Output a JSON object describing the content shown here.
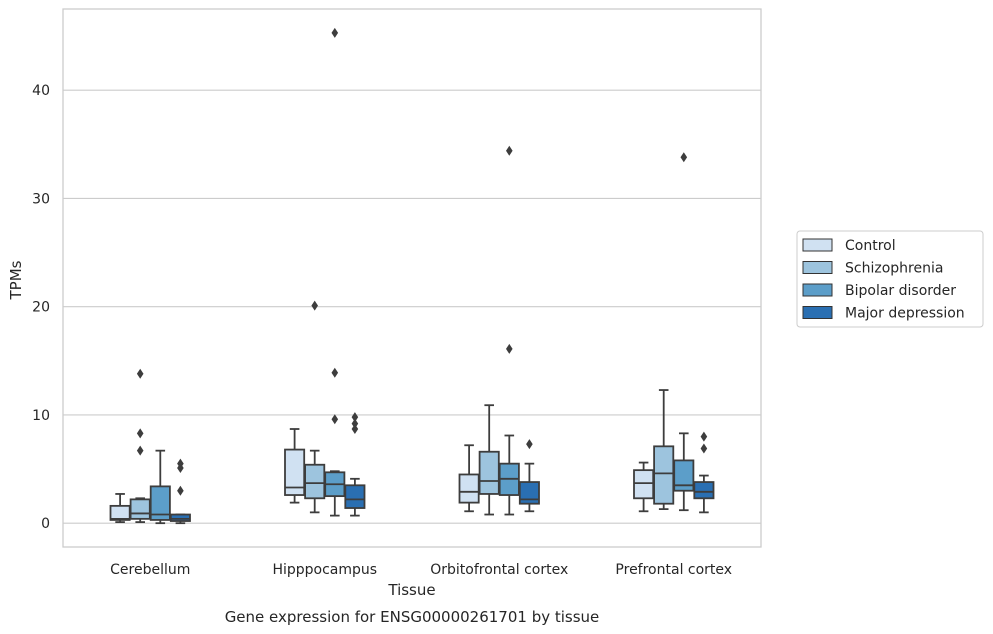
{
  "chart_data": {
    "type": "box",
    "caption": "Gene expression for ENSG00000261701 by tissue",
    "xlabel": "Tissue",
    "ylabel": "TPMs",
    "ylim": [
      -2.2,
      47.5
    ],
    "yticks": [
      0,
      10,
      20,
      30,
      40
    ],
    "grid": "y",
    "legend_position": "right",
    "categories": [
      "Cerebellum",
      "Hipppocampus",
      "Orbitofrontal cortex",
      "Prefrontal cortex"
    ],
    "series": [
      {
        "name": "Control",
        "color": "#d0e1f2",
        "boxes": [
          {
            "whislo": 0.1,
            "q1": 0.3,
            "med": 0.4,
            "q3": 1.6,
            "whishi": 2.7,
            "fliers": []
          },
          {
            "whislo": 1.9,
            "q1": 2.6,
            "med": 3.3,
            "q3": 6.8,
            "whishi": 8.7,
            "fliers": []
          },
          {
            "whislo": 1.1,
            "q1": 1.9,
            "med": 2.9,
            "q3": 4.5,
            "whishi": 7.2,
            "fliers": []
          },
          {
            "whislo": 1.1,
            "q1": 2.3,
            "med": 3.7,
            "q3": 4.9,
            "whishi": 5.6,
            "fliers": []
          }
        ]
      },
      {
        "name": "Schizophrenia",
        "color": "#9dc4de",
        "boxes": [
          {
            "whislo": 0.1,
            "q1": 0.4,
            "med": 0.9,
            "q3": 2.2,
            "whishi": 2.3,
            "fliers": [
              6.7,
              8.3,
              13.8
            ]
          },
          {
            "whislo": 1.0,
            "q1": 2.3,
            "med": 3.7,
            "q3": 5.4,
            "whishi": 6.7,
            "fliers": [
              20.1
            ]
          },
          {
            "whislo": 0.8,
            "q1": 2.7,
            "med": 3.9,
            "q3": 6.6,
            "whishi": 10.9,
            "fliers": []
          },
          {
            "whislo": 1.3,
            "q1": 1.8,
            "med": 4.6,
            "q3": 7.1,
            "whishi": 12.3,
            "fliers": []
          }
        ]
      },
      {
        "name": "Bipolar disorder",
        "color": "#5c9ec9",
        "boxes": [
          {
            "whislo": 0.0,
            "q1": 0.3,
            "med": 0.8,
            "q3": 3.4,
            "whishi": 6.7,
            "fliers": []
          },
          {
            "whislo": 0.7,
            "q1": 2.5,
            "med": 3.6,
            "q3": 4.7,
            "whishi": 4.8,
            "fliers": [
              9.6,
              13.9,
              45.3
            ]
          },
          {
            "whislo": 0.8,
            "q1": 2.6,
            "med": 4.1,
            "q3": 5.5,
            "whishi": 8.1,
            "fliers": [
              16.1,
              34.4
            ]
          },
          {
            "whislo": 1.2,
            "q1": 3.0,
            "med": 3.5,
            "q3": 5.8,
            "whishi": 8.3,
            "fliers": [
              33.8
            ]
          }
        ]
      },
      {
        "name": "Major depression",
        "color": "#2a6fb2",
        "boxes": [
          {
            "whislo": 0.0,
            "q1": 0.2,
            "med": 0.4,
            "q3": 0.8,
            "whishi": 0.8,
            "fliers": [
              3.0,
              5.1,
              5.5
            ]
          },
          {
            "whislo": 0.7,
            "q1": 1.4,
            "med": 2.2,
            "q3": 3.5,
            "whishi": 4.1,
            "fliers": [
              8.7,
              9.2,
              9.8
            ]
          },
          {
            "whislo": 1.1,
            "q1": 1.8,
            "med": 2.2,
            "q3": 3.8,
            "whishi": 5.5,
            "fliers": [
              7.3
            ]
          },
          {
            "whislo": 1.0,
            "q1": 2.3,
            "med": 2.9,
            "q3": 3.8,
            "whishi": 4.4,
            "fliers": [
              6.9,
              8.0
            ]
          }
        ]
      }
    ]
  }
}
